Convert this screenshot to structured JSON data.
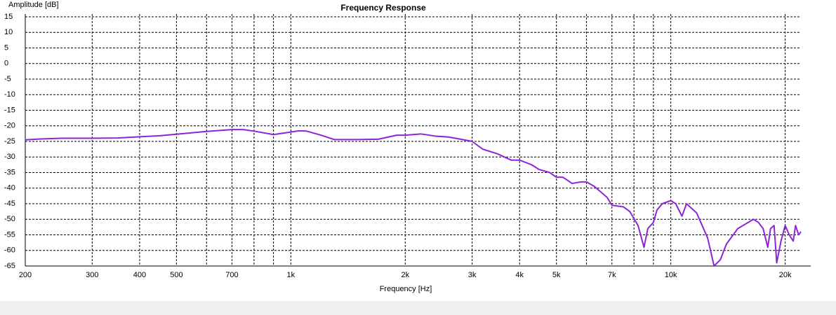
{
  "chart_data": {
    "type": "line",
    "title": "Frequency Response",
    "xlabel": "Frequency [Hz]",
    "ylabel": "Amplitude [dB]",
    "xscale": "log",
    "grid": true,
    "xlim": [
      200,
      22000
    ],
    "ylim": [
      -65,
      15
    ],
    "xticks": [
      200,
      300,
      400,
      500,
      700,
      {
        "value": 1000,
        "label": "1k"
      },
      {
        "value": 2000,
        "label": "2k"
      },
      {
        "value": 3000,
        "label": "3k"
      },
      {
        "value": 4000,
        "label": "4k"
      },
      {
        "value": 5000,
        "label": "5k"
      },
      {
        "value": 7000,
        "label": "7k"
      },
      {
        "value": 10000,
        "label": "10k"
      },
      {
        "value": 20000,
        "label": "20k"
      }
    ],
    "xgrid": [
      600,
      800,
      900,
      6000,
      8000,
      9000
    ],
    "yticks": [
      15,
      10,
      5,
      0,
      -5,
      -10,
      -15,
      -20,
      -25,
      -30,
      -35,
      -40,
      -45,
      -50,
      -55,
      -60,
      -65
    ],
    "x": [
      200,
      220,
      250,
      300,
      350,
      400,
      450,
      500,
      600,
      700,
      750,
      800,
      900,
      1000,
      1050,
      1100,
      1200,
      1300,
      1500,
      1700,
      1900,
      2000,
      2200,
      2400,
      2600,
      2800,
      3000,
      3200,
      3500,
      3800,
      4000,
      4300,
      4500,
      4800,
      5000,
      5200,
      5500,
      5800,
      6000,
      6300,
      6800,
      7000,
      7500,
      7800,
      8200,
      8500,
      8700,
      9000,
      9200,
      9500,
      10000,
      10300,
      10700,
      11000,
      11700,
      12500,
      13000,
      13500,
      14000,
      15000,
      16500,
      17000,
      17500,
      18000,
      18300,
      18700,
      19000,
      19500,
      20000,
      20500,
      21000,
      21300,
      21700,
      22000
    ],
    "series": [
      {
        "name": "Frequency Response",
        "color": "#8e24d8",
        "values": [
          -24.5,
          -24.2,
          -24,
          -24,
          -23.9,
          -23.5,
          -23.2,
          -22.7,
          -21.8,
          -21.2,
          -21.2,
          -21.7,
          -22.8,
          -22,
          -21.6,
          -21.7,
          -23,
          -24.4,
          -24.4,
          -24.3,
          -23,
          -23,
          -22.6,
          -23.3,
          -23.6,
          -24.3,
          -25,
          -27.5,
          -29,
          -31,
          -31,
          -32.5,
          -34,
          -35,
          -36.5,
          -36.5,
          -38.5,
          -38,
          -38,
          -39.5,
          -43,
          -45.5,
          -46,
          -47.5,
          -52,
          -59,
          -53,
          -51,
          -47,
          -45,
          -44,
          -45,
          -49,
          -45,
          -48,
          -56,
          -65,
          -63,
          -58,
          -53,
          -50,
          -51,
          -53,
          -59,
          -53,
          -52,
          -64,
          -57,
          -52,
          -55,
          -57,
          -52,
          -55,
          -54
        ]
      }
    ]
  }
}
